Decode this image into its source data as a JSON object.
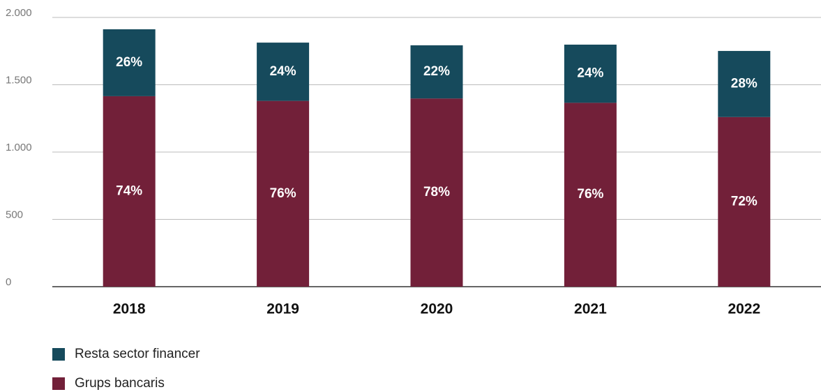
{
  "chart_data": {
    "type": "stacked_bar",
    "categories": [
      "2018",
      "2019",
      "2020",
      "2021",
      "2022"
    ],
    "series": [
      {
        "name": "Grups bancaris",
        "color": "#722039",
        "values": [
          1415,
          1380,
          1398,
          1366,
          1260
        ],
        "labels": [
          "74%",
          "76%",
          "78%",
          "76%",
          "72%"
        ]
      },
      {
        "name": "Resta sector financer",
        "color": "#164a5c",
        "values": [
          497,
          433,
          395,
          432,
          491
        ],
        "labels": [
          "26%",
          "24%",
          "22%",
          "24%",
          "28%"
        ]
      }
    ],
    "ylim": [
      0,
      2000
    ],
    "yticks": [
      0,
      500,
      {
        "value": 1000,
        "label": "1.000"
      },
      {
        "value": 1500,
        "label": "1.500"
      },
      {
        "value": 2000,
        "label": "2.000"
      }
    ],
    "grid": true
  }
}
